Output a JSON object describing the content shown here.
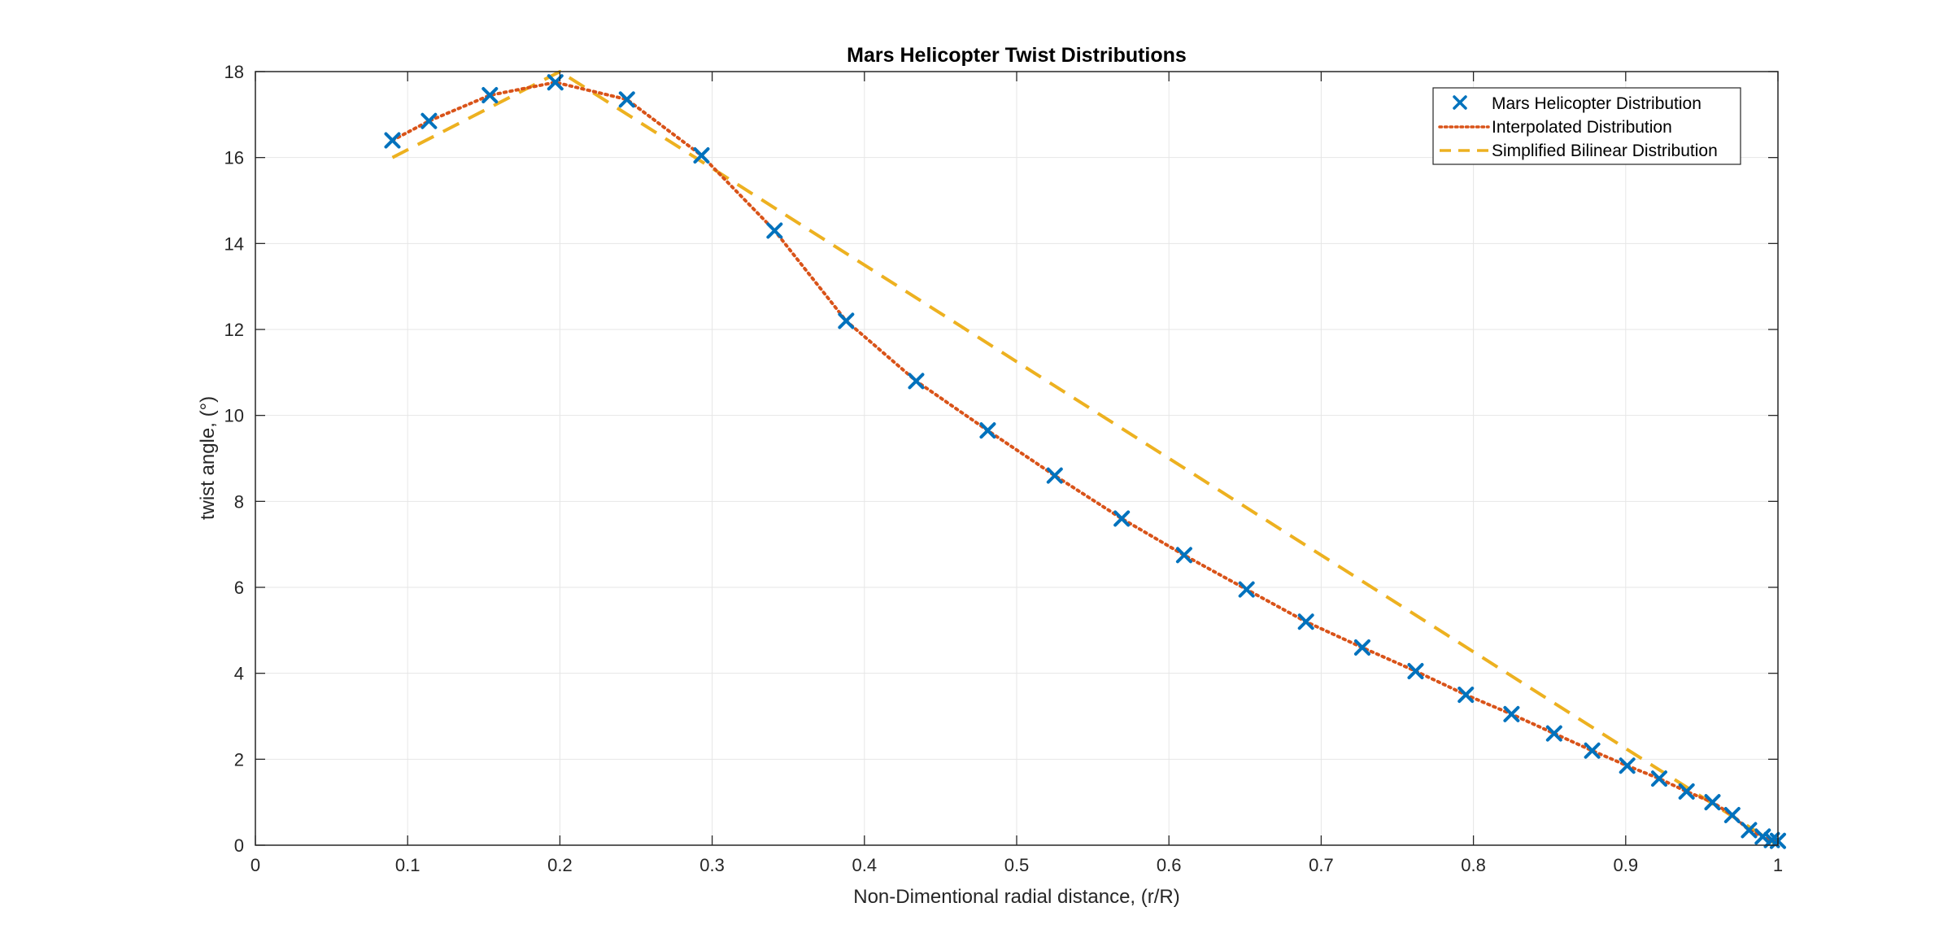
{
  "chart_data": {
    "type": "line",
    "title": "Mars Helicopter Twist Distributions",
    "xlabel": "Non-Dimentional radial distance, (r/R)",
    "ylabel": "twist angle, (°)",
    "xlim": [
      0,
      1
    ],
    "ylim": [
      0,
      18
    ],
    "xticks": [
      0,
      0.1,
      0.2,
      0.3,
      0.4,
      0.5,
      0.6,
      0.7,
      0.8,
      0.9,
      1
    ],
    "xtick_labels": [
      "0",
      "0.1",
      "0.2",
      "0.3",
      "0.4",
      "0.5",
      "0.6",
      "0.7",
      "0.8",
      "0.9",
      "1"
    ],
    "yticks": [
      0,
      2,
      4,
      6,
      8,
      10,
      12,
      14,
      16,
      18
    ],
    "ytick_labels": [
      "0",
      "2",
      "4",
      "6",
      "8",
      "10",
      "12",
      "14",
      "16",
      "18"
    ],
    "grid": true,
    "legend_position": "top-right",
    "series": [
      {
        "name": "Mars Helicopter Distribution",
        "style": "markers",
        "marker": "x",
        "color": "#0072BD",
        "x": [
          0.09,
          0.114,
          0.154,
          0.197,
          0.244,
          0.293,
          0.341,
          0.388,
          0.434,
          0.481,
          0.525,
          0.569,
          0.61,
          0.651,
          0.69,
          0.727,
          0.762,
          0.795,
          0.825,
          0.853,
          0.878,
          0.901,
          0.922,
          0.94,
          0.957,
          0.97,
          0.981,
          0.99,
          0.996,
          1.0
        ],
        "y": [
          16.4,
          16.85,
          17.45,
          17.75,
          17.35,
          16.05,
          14.3,
          12.2,
          10.8,
          9.65,
          8.6,
          7.6,
          6.75,
          5.95,
          5.2,
          4.6,
          4.05,
          3.5,
          3.05,
          2.6,
          2.2,
          1.85,
          1.55,
          1.25,
          1.0,
          0.7,
          0.35,
          0.2,
          0.12,
          0.1
        ]
      },
      {
        "name": "Interpolated Distribution",
        "style": "dotted",
        "color": "#D95319",
        "x": [
          0.09,
          0.114,
          0.154,
          0.197,
          0.244,
          0.293,
          0.341,
          0.388,
          0.434,
          0.481,
          0.525,
          0.569,
          0.61,
          0.651,
          0.69,
          0.727,
          0.762,
          0.795,
          0.825,
          0.853,
          0.878,
          0.901,
          0.922,
          0.94,
          0.957,
          0.97,
          0.981,
          0.99,
          0.996,
          1.0
        ],
        "y": [
          16.4,
          16.85,
          17.45,
          17.75,
          17.35,
          16.05,
          14.3,
          12.2,
          10.8,
          9.65,
          8.6,
          7.6,
          6.75,
          5.95,
          5.2,
          4.6,
          4.05,
          3.5,
          3.05,
          2.6,
          2.2,
          1.85,
          1.55,
          1.25,
          1.0,
          0.7,
          0.35,
          0.2,
          0.12,
          0.1
        ]
      },
      {
        "name": "Simplified Bilinear Distribution",
        "style": "dashed",
        "color": "#EDB120",
        "x": [
          0.09,
          0.2,
          1.0
        ],
        "y": [
          16.0,
          18.0,
          0.0
        ]
      }
    ]
  }
}
